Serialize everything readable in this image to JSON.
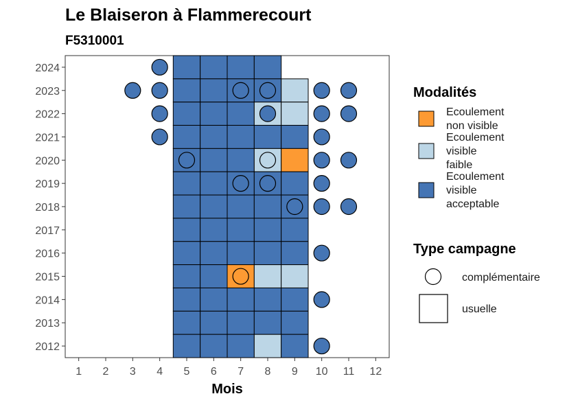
{
  "chart_data": {
    "type": "heatmap",
    "title": "Le Blaiseron à Flammerecourt",
    "subtitle": "F5310001",
    "xlabel": "Mois",
    "ylabel": "",
    "x_ticks": [
      "1",
      "2",
      "3",
      "4",
      "5",
      "6",
      "7",
      "8",
      "9",
      "10",
      "11",
      "12"
    ],
    "y_ticks": [
      "2012",
      "2013",
      "2014",
      "2015",
      "2016",
      "2017",
      "2018",
      "2019",
      "2020",
      "2021",
      "2022",
      "2023",
      "2024"
    ],
    "xlim": [
      0.5,
      12.5
    ],
    "ylim": [
      2011.5,
      2024.5
    ],
    "colors": {
      "non_visible": "#fd9a33",
      "faible": "#bcd6e6",
      "acceptable": "#4575b4"
    },
    "legend": {
      "modalites_title": "Modalités",
      "modalites": [
        {
          "key": "non_visible",
          "lines": [
            "Ecoulement",
            "non visible"
          ]
        },
        {
          "key": "faible",
          "lines": [
            "Ecoulement",
            "visible",
            "faible"
          ]
        },
        {
          "key": "acceptable",
          "lines": [
            "Ecoulement",
            "visible",
            "acceptable"
          ]
        }
      ],
      "type_title": "Type campagne",
      "types": [
        {
          "shape": "circle",
          "label": "complémentaire"
        },
        {
          "shape": "square",
          "label": "usuelle"
        }
      ]
    },
    "usuelle": [
      {
        "year": 2024,
        "months": [
          [
            "acceptable",
            5
          ],
          [
            "acceptable",
            6
          ],
          [
            "acceptable",
            7
          ],
          [
            "acceptable",
            8
          ]
        ]
      },
      {
        "year": 2023,
        "months": [
          [
            "acceptable",
            5
          ],
          [
            "acceptable",
            6
          ],
          [
            "acceptable",
            7
          ],
          [
            "acceptable",
            8
          ],
          [
            "faible",
            9
          ]
        ]
      },
      {
        "year": 2022,
        "months": [
          [
            "acceptable",
            5
          ],
          [
            "acceptable",
            6
          ],
          [
            "acceptable",
            7
          ],
          [
            "faible",
            8
          ],
          [
            "faible",
            9
          ]
        ]
      },
      {
        "year": 2021,
        "months": [
          [
            "acceptable",
            5
          ],
          [
            "acceptable",
            6
          ],
          [
            "acceptable",
            7
          ],
          [
            "acceptable",
            8
          ],
          [
            "acceptable",
            9
          ]
        ]
      },
      {
        "year": 2020,
        "months": [
          [
            "acceptable",
            5
          ],
          [
            "acceptable",
            6
          ],
          [
            "acceptable",
            7
          ],
          [
            "faible",
            8
          ],
          [
            "non_visible",
            9
          ]
        ]
      },
      {
        "year": 2019,
        "months": [
          [
            "acceptable",
            5
          ],
          [
            "acceptable",
            6
          ],
          [
            "acceptable",
            7
          ],
          [
            "acceptable",
            8
          ],
          [
            "acceptable",
            9
          ]
        ]
      },
      {
        "year": 2018,
        "months": [
          [
            "acceptable",
            5
          ],
          [
            "acceptable",
            6
          ],
          [
            "acceptable",
            7
          ],
          [
            "acceptable",
            8
          ],
          [
            "acceptable",
            9
          ]
        ]
      },
      {
        "year": 2017,
        "months": [
          [
            "acceptable",
            5
          ],
          [
            "acceptable",
            6
          ],
          [
            "acceptable",
            7
          ],
          [
            "acceptable",
            8
          ],
          [
            "acceptable",
            9
          ]
        ]
      },
      {
        "year": 2016,
        "months": [
          [
            "acceptable",
            5
          ],
          [
            "acceptable",
            6
          ],
          [
            "acceptable",
            7
          ],
          [
            "acceptable",
            8
          ],
          [
            "acceptable",
            9
          ]
        ]
      },
      {
        "year": 2015,
        "months": [
          [
            "acceptable",
            5
          ],
          [
            "acceptable",
            6
          ],
          [
            "non_visible",
            7
          ],
          [
            "faible",
            8
          ],
          [
            "faible",
            9
          ]
        ]
      },
      {
        "year": 2014,
        "months": [
          [
            "acceptable",
            5
          ],
          [
            "acceptable",
            6
          ],
          [
            "acceptable",
            7
          ],
          [
            "acceptable",
            8
          ],
          [
            "acceptable",
            9
          ]
        ]
      },
      {
        "year": 2013,
        "months": [
          [
            "acceptable",
            5
          ],
          [
            "acceptable",
            6
          ],
          [
            "acceptable",
            7
          ],
          [
            "acceptable",
            8
          ],
          [
            "acceptable",
            9
          ]
        ]
      },
      {
        "year": 2012,
        "months": [
          [
            "acceptable",
            5
          ],
          [
            "acceptable",
            6
          ],
          [
            "acceptable",
            7
          ],
          [
            "faible",
            8
          ],
          [
            "acceptable",
            9
          ]
        ]
      }
    ],
    "complementaire": [
      {
        "year": 2024,
        "month": 4,
        "value": "acceptable"
      },
      {
        "year": 2023,
        "month": 3,
        "value": "acceptable"
      },
      {
        "year": 2023,
        "month": 4,
        "value": "acceptable"
      },
      {
        "year": 2023,
        "month": 7,
        "value": "acceptable"
      },
      {
        "year": 2023,
        "month": 8,
        "value": "acceptable"
      },
      {
        "year": 2023,
        "month": 10,
        "value": "acceptable"
      },
      {
        "year": 2023,
        "month": 11,
        "value": "acceptable"
      },
      {
        "year": 2022,
        "month": 4,
        "value": "acceptable"
      },
      {
        "year": 2022,
        "month": 8,
        "value": "acceptable"
      },
      {
        "year": 2022,
        "month": 10,
        "value": "acceptable"
      },
      {
        "year": 2022,
        "month": 11,
        "value": "acceptable"
      },
      {
        "year": 2021,
        "month": 4,
        "value": "acceptable"
      },
      {
        "year": 2021,
        "month": 10,
        "value": "acceptable"
      },
      {
        "year": 2020,
        "month": 5,
        "value": "acceptable"
      },
      {
        "year": 2020,
        "month": 8,
        "value": "faible"
      },
      {
        "year": 2020,
        "month": 10,
        "value": "acceptable"
      },
      {
        "year": 2020,
        "month": 11,
        "value": "acceptable"
      },
      {
        "year": 2019,
        "month": 7,
        "value": "acceptable"
      },
      {
        "year": 2019,
        "month": 8,
        "value": "acceptable"
      },
      {
        "year": 2019,
        "month": 10,
        "value": "acceptable"
      },
      {
        "year": 2018,
        "month": 9,
        "value": "acceptable"
      },
      {
        "year": 2018,
        "month": 10,
        "value": "acceptable"
      },
      {
        "year": 2018,
        "month": 11,
        "value": "acceptable"
      },
      {
        "year": 2016,
        "month": 10,
        "value": "acceptable"
      },
      {
        "year": 2015,
        "month": 7,
        "value": "non_visible"
      },
      {
        "year": 2014,
        "month": 10,
        "value": "acceptable"
      },
      {
        "year": 2012,
        "month": 10,
        "value": "acceptable"
      }
    ]
  }
}
